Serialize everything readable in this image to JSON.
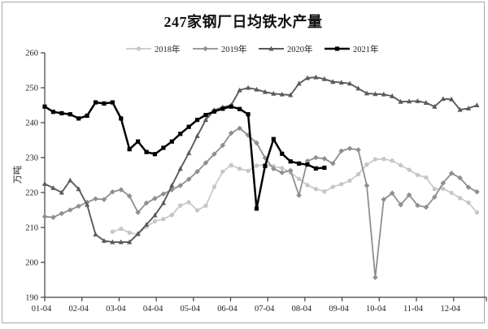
{
  "title": "247家钢厂日均铁水产量",
  "colors": {
    "series2018": "#c7c7c7",
    "series2019": "#8f8f8f",
    "series2020": "#5a5a5a",
    "series2021": "#000000",
    "axis": "#404040",
    "text": "#1f1f1f",
    "border": "#a9a9a9",
    "background": "#ffffff"
  },
  "chart_data": {
    "type": "line",
    "title": "247家钢厂日均铁水产量",
    "ylabel": "万吨",
    "xlabel": "",
    "ylim": [
      190,
      260
    ],
    "y_tick_labels": [
      "190",
      "200",
      "210",
      "220",
      "230",
      "240",
      "250",
      "260"
    ],
    "x_tick_labels": [
      "01-04",
      "02-04",
      "03-04",
      "04-04",
      "05-04",
      "06-04",
      "07-04",
      "08-04",
      "09-04",
      "10-04",
      "11-04",
      "12-04"
    ],
    "x_granularity": "weekly",
    "grid": false,
    "legend_position": "top",
    "series": [
      {
        "name": "2018年",
        "color": "#c7c7c7",
        "marker": "circle",
        "line_width": 1.7,
        "values": [
          null,
          null,
          null,
          null,
          null,
          null,
          null,
          null,
          208.8,
          209.6,
          208.5,
          208.0,
          210.2,
          211.8,
          212.4,
          213.6,
          216.3,
          217.2,
          214.9,
          216.2,
          221.6,
          226.0,
          227.8,
          226.8,
          226.2,
          227.7,
          227.9,
          227.5,
          227.0,
          225.7,
          223.9,
          222.1,
          221.0,
          220.3,
          221.6,
          222.4,
          223.4,
          225.2,
          228.0,
          229.5,
          229.6,
          229.1,
          227.8,
          226.5,
          225.0,
          224.3,
          221.0,
          221.1,
          219.9,
          218.4,
          217.1,
          214.3
        ]
      },
      {
        "name": "2019年",
        "color": "#8f8f8f",
        "marker": "diamond",
        "line_width": 1.8,
        "values": [
          213.1,
          212.9,
          214.0,
          215.0,
          216.1,
          217.2,
          218.2,
          218.0,
          220.2,
          220.8,
          219.0,
          214.3,
          217.0,
          218.3,
          219.6,
          220.8,
          222.0,
          223.8,
          226.0,
          228.5,
          231.0,
          233.5,
          237.0,
          238.4,
          236.4,
          234.2,
          229.9,
          226.8,
          225.7,
          226.3,
          219.2,
          229.0,
          230.0,
          229.7,
          228.3,
          231.9,
          232.6,
          232.2,
          222.0,
          195.7,
          218.0,
          219.8,
          216.5,
          219.3,
          216.3,
          215.8,
          218.7,
          222.7,
          225.5,
          224.2,
          221.5,
          220.2
        ]
      },
      {
        "name": "2020年",
        "color": "#5a5a5a",
        "marker": "triangle",
        "line_width": 1.9,
        "values": [
          222.5,
          221.3,
          220.0,
          223.5,
          221.0,
          216.5,
          208.0,
          206.2,
          205.8,
          205.8,
          205.8,
          208.2,
          210.8,
          213.5,
          217.0,
          222.0,
          226.8,
          231.3,
          236.2,
          240.8,
          243.6,
          244.4,
          245.0,
          249.3,
          250.0,
          249.5,
          248.8,
          248.3,
          248.1,
          247.9,
          251.2,
          252.8,
          253.0,
          252.5,
          251.7,
          251.5,
          251.2,
          249.8,
          248.4,
          248.2,
          248.1,
          247.6,
          246.0,
          246.1,
          246.2,
          245.7,
          244.6,
          246.8,
          246.7,
          243.7,
          244.1,
          245.0
        ]
      },
      {
        "name": "2021年",
        "color": "#000000",
        "marker": "square",
        "line_width": 2.5,
        "values": [
          244.6,
          243.1,
          242.7,
          242.4,
          241.2,
          242.0,
          245.8,
          245.5,
          245.8,
          241.2,
          232.4,
          234.6,
          231.6,
          231.0,
          232.8,
          234.6,
          236.8,
          238.8,
          240.8,
          242.2,
          243.2,
          244.0,
          244.6,
          243.9,
          242.4,
          215.4,
          227.6,
          235.3,
          231.1,
          228.9,
          228.3,
          228.0,
          226.9,
          227.1,
          null,
          null,
          null,
          null,
          null,
          null,
          null,
          null,
          null,
          null,
          null,
          null,
          null,
          null,
          null,
          null,
          null,
          null
        ]
      }
    ]
  }
}
